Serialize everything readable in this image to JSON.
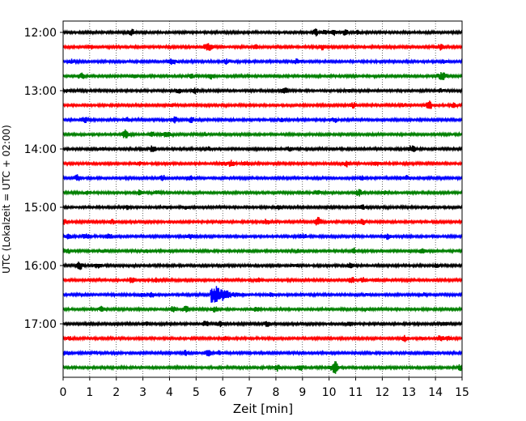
{
  "chart_data": {
    "type": "line",
    "title": "",
    "xlabel": "Zeit  [min]",
    "ylabel": "UTC (Lokalzeit = UTC + 02:00)",
    "xlim": [
      0,
      15
    ],
    "x_ticks": [
      "0",
      "1",
      "2",
      "3",
      "4",
      "5",
      "6",
      "7",
      "8",
      "9",
      "10",
      "11",
      "12",
      "13",
      "14",
      "15"
    ],
    "y_ticks": [
      "12:00",
      "13:00",
      "14:00",
      "15:00",
      "16:00",
      "17:00"
    ],
    "grid": "vertical dotted",
    "trace_colors": [
      "#000000",
      "#ff0000",
      "#0000ff",
      "#008000"
    ],
    "series": [
      {
        "start": "12:00",
        "color": "#000000"
      },
      {
        "start": "12:15",
        "color": "#ff0000"
      },
      {
        "start": "12:30",
        "color": "#0000ff"
      },
      {
        "start": "12:45",
        "color": "#008000"
      },
      {
        "start": "13:00",
        "color": "#000000"
      },
      {
        "start": "13:15",
        "color": "#ff0000"
      },
      {
        "start": "13:30",
        "color": "#0000ff"
      },
      {
        "start": "13:45",
        "color": "#008000"
      },
      {
        "start": "14:00",
        "color": "#000000"
      },
      {
        "start": "14:15",
        "color": "#ff0000"
      },
      {
        "start": "14:30",
        "color": "#0000ff"
      },
      {
        "start": "14:45",
        "color": "#008000"
      },
      {
        "start": "15:00",
        "color": "#000000"
      },
      {
        "start": "15:15",
        "color": "#ff0000"
      },
      {
        "start": "15:30",
        "color": "#0000ff"
      },
      {
        "start": "15:45",
        "color": "#008000"
      },
      {
        "start": "16:00",
        "color": "#000000"
      },
      {
        "start": "16:15",
        "color": "#ff0000"
      },
      {
        "start": "16:30",
        "color": "#0000ff",
        "event": {
          "time_min": 5.6,
          "peak_amplitude": 2.5
        }
      },
      {
        "start": "16:45",
        "color": "#008000"
      },
      {
        "start": "17:00",
        "color": "#000000"
      },
      {
        "start": "17:15",
        "color": "#ff0000"
      },
      {
        "start": "17:30",
        "color": "#0000ff"
      },
      {
        "start": "17:45",
        "color": "#008000"
      }
    ]
  }
}
